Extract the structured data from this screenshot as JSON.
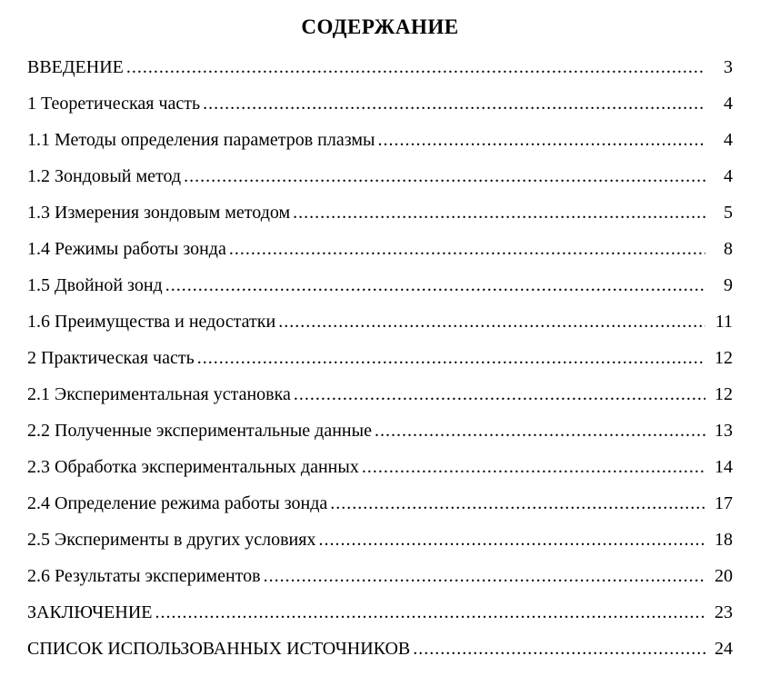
{
  "document": {
    "title": "СОДЕРЖАНИЕ",
    "entries": [
      {
        "label": "ВВЕДЕНИЕ",
        "page": "3"
      },
      {
        "label": "1 Теоретическая часть",
        "page": "4"
      },
      {
        "label": "1.1 Методы определения параметров плазмы",
        "page": "4"
      },
      {
        "label": "1.2 Зондовый метод",
        "page": "4"
      },
      {
        "label": "1.3 Измерения зондовым методом",
        "page": "5"
      },
      {
        "label": "1.4 Режимы работы зонда",
        "page": "8"
      },
      {
        "label": "1.5 Двойной зонд",
        "page": "9"
      },
      {
        "label": "1.6 Преимущества и недостатки",
        "page": "11"
      },
      {
        "label": "2 Практическая часть",
        "page": "12"
      },
      {
        "label": "2.1 Экспериментальная установка",
        "page": "12"
      },
      {
        "label": "2.2 Полученные экспериментальные данные",
        "page": "13"
      },
      {
        "label": "2.3 Обработка экспериментальных данных",
        "page": "14"
      },
      {
        "label": "2.4 Определение режима работы зонда",
        "page": "17"
      },
      {
        "label": "2.5 Эксперименты в других условиях",
        "page": "18"
      },
      {
        "label": "2.6 Результаты экспериментов",
        "page": "20"
      },
      {
        "label": "ЗАКЛЮЧЕНИЕ",
        "page": "23"
      },
      {
        "label": "СПИСОК ИСПОЛЬЗОВАННЫХ ИСТОЧНИКОВ",
        "page": "24"
      }
    ]
  }
}
